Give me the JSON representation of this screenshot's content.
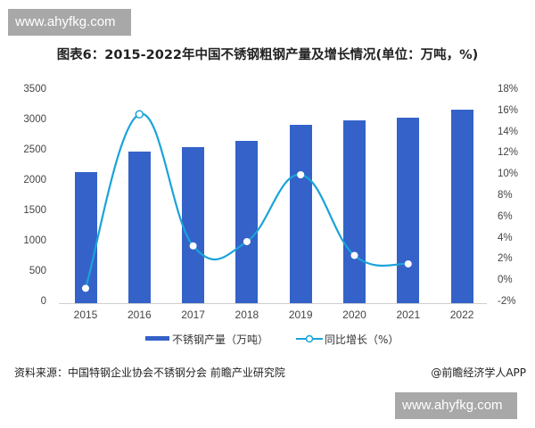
{
  "watermark": {
    "text": "www.ahyfkg.com"
  },
  "header": {
    "title": "图表6：2015-2022年中国不锈钢粗钢产量及增长情况(单位：万吨，%)"
  },
  "axes": {
    "left_ticks": [
      "3500",
      "3000",
      "2500",
      "2000",
      "1500",
      "1000",
      "500",
      "0"
    ],
    "right_ticks": [
      "18%",
      "16%",
      "14%",
      "12%",
      "10%",
      "8%",
      "6%",
      "4%",
      "2%",
      "0%",
      "-2%"
    ],
    "x_ticks": [
      "2015",
      "2016",
      "2017",
      "2018",
      "2019",
      "2020",
      "2021",
      "2022"
    ]
  },
  "legend": {
    "bar_label": "不锈钢产量（万吨）",
    "line_label": "同比增长（%）"
  },
  "footer": {
    "source": "资料来源：中国特钢企业协会不锈钢分会 前瞻产业研究院",
    "credit": "@前瞻经济学人APP"
  },
  "colors": {
    "bar": "#3462c8",
    "line": "#1aa3d9",
    "marker_fill": "#ffffff"
  },
  "chart_data": {
    "type": "bar",
    "title": "图表6：2015-2022年中国不锈钢粗钢产量及增长情况(单位：万吨，%)",
    "xlabel": "",
    "ylabel": "万吨",
    "y2label": "%",
    "categories": [
      "2015",
      "2016",
      "2017",
      "2018",
      "2019",
      "2020",
      "2021",
      "2022"
    ],
    "series": [
      {
        "name": "不锈钢产量（万吨）",
        "type": "bar",
        "axis": "left",
        "values": [
          2156,
          2494,
          2577,
          2671,
          2940,
          3014,
          3063,
          3198
        ]
      },
      {
        "name": "同比增长（%）",
        "type": "line",
        "axis": "right",
        "smooth": true,
        "values": [
          -0.6,
          15.8,
          3.4,
          3.8,
          10.1,
          2.5,
          1.7,
          null
        ]
      }
    ],
    "ylim": [
      0,
      3500
    ],
    "y2lim": [
      -2,
      18
    ],
    "yticks": [
      0,
      500,
      1000,
      1500,
      2000,
      2500,
      3000,
      3500
    ],
    "y2ticks": [
      -2,
      0,
      2,
      4,
      6,
      8,
      10,
      12,
      14,
      16,
      18
    ],
    "grid": false,
    "legend_position": "bottom"
  }
}
